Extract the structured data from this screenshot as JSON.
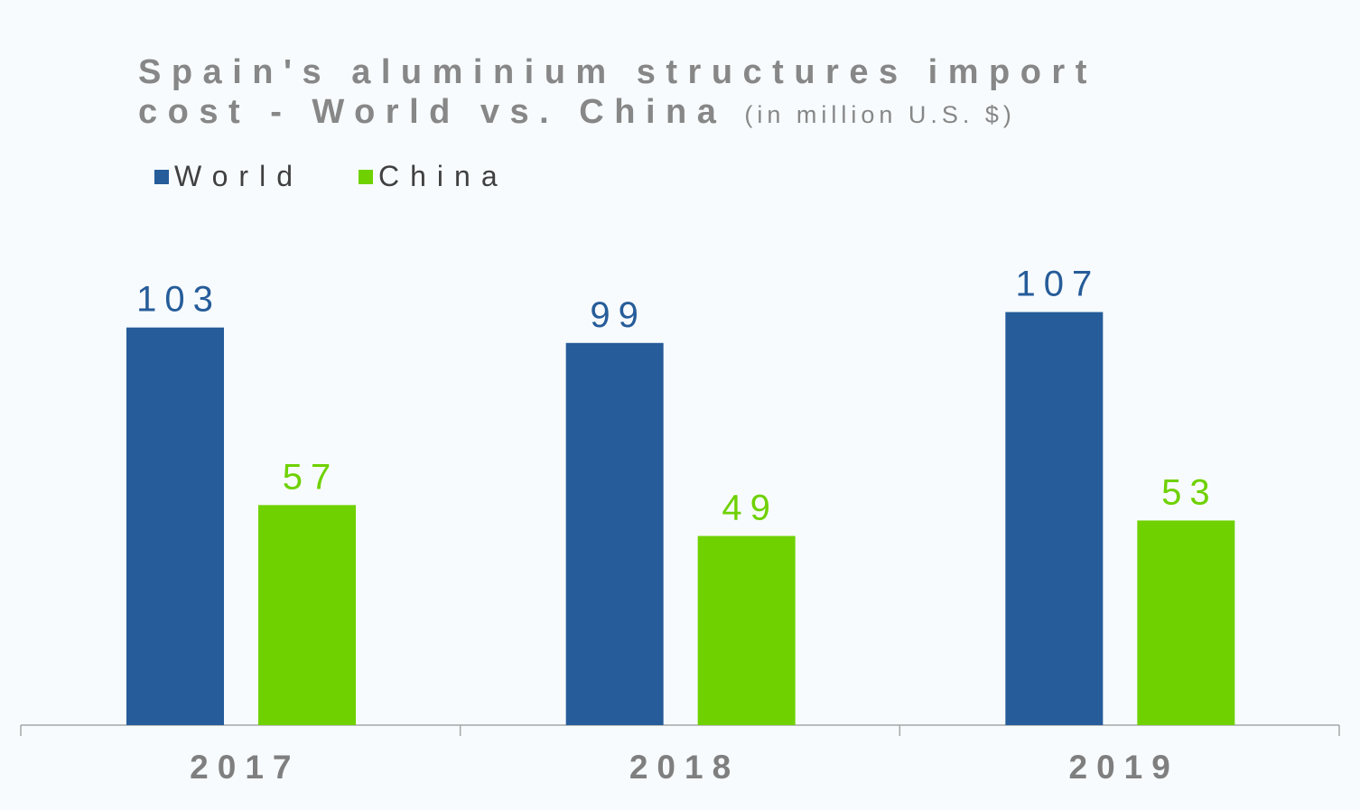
{
  "chart_data": {
    "type": "bar",
    "title": "Spain's aluminium structures import cost - World vs. China",
    "title_line1": "Spain's aluminium structures import",
    "title_line2": "cost - World vs. China",
    "subtitle": "(in million U.S. $)",
    "categories": [
      "2017",
      "2018",
      "2019"
    ],
    "series": [
      {
        "name": "World",
        "color": "#265c99",
        "values": [
          103,
          99,
          107
        ]
      },
      {
        "name": "China",
        "color": "#6fd100",
        "values": [
          57,
          49,
          53
        ]
      }
    ],
    "ylim": [
      0,
      110
    ],
    "legend_position": "top-left",
    "grid": false,
    "data_labels": true,
    "xlabel": "",
    "ylabel": ""
  }
}
